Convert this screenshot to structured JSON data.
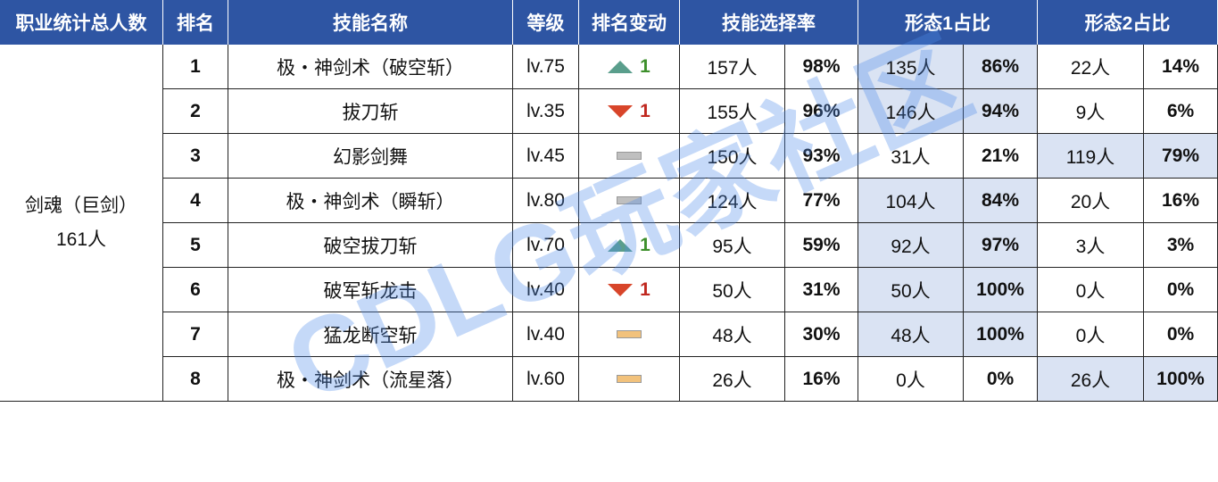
{
  "headers": [
    "职业统计总人数",
    "排名",
    "技能名称",
    "等级",
    "排名变动",
    "技能选择率",
    "形态1占比",
    "形态2占比"
  ],
  "class_name": "剑魂（巨剑）",
  "class_total": "161人",
  "watermark": "CDLG玩家社区",
  "rows": [
    {
      "rank": 1,
      "skill": "极・神剑术（破空斩）",
      "level": "lv.75",
      "change": {
        "dir": "up",
        "label": "1"
      },
      "count": "157人",
      "rate": "98%",
      "f1_count": "135人",
      "f1_rate": "86%",
      "f2_count": "22人",
      "f2_rate": "14%",
      "major": 1
    },
    {
      "rank": 2,
      "skill": "拔刀斩",
      "level": "lv.35",
      "change": {
        "dir": "down",
        "label": "1"
      },
      "count": "155人",
      "rate": "96%",
      "f1_count": "146人",
      "f1_rate": "94%",
      "f2_count": "9人",
      "f2_rate": "6%",
      "major": 1
    },
    {
      "rank": 3,
      "skill": "幻影剑舞",
      "level": "lv.45",
      "change": {
        "dir": "flat",
        "color": "#bfbfbf"
      },
      "count": "150人",
      "rate": "93%",
      "f1_count": "31人",
      "f1_rate": "21%",
      "f2_count": "119人",
      "f2_rate": "79%",
      "major": 2
    },
    {
      "rank": 4,
      "skill": "极・神剑术（瞬斩）",
      "level": "lv.80",
      "change": {
        "dir": "flat",
        "color": "#bfbfbf"
      },
      "count": "124人",
      "rate": "77%",
      "f1_count": "104人",
      "f1_rate": "84%",
      "f2_count": "20人",
      "f2_rate": "16%",
      "major": 1
    },
    {
      "rank": 5,
      "skill": "破空拔刀斩",
      "level": "lv.70",
      "change": {
        "dir": "up",
        "label": "1"
      },
      "count": "95人",
      "rate": "59%",
      "f1_count": "92人",
      "f1_rate": "97%",
      "f2_count": "3人",
      "f2_rate": "3%",
      "major": 1
    },
    {
      "rank": 6,
      "skill": "破军斩龙击",
      "level": "lv.40",
      "change": {
        "dir": "down",
        "label": "1"
      },
      "count": "50人",
      "rate": "31%",
      "f1_count": "50人",
      "f1_rate": "100%",
      "f2_count": "0人",
      "f2_rate": "0%",
      "major": 1
    },
    {
      "rank": 7,
      "skill": "猛龙断空斩",
      "level": "lv.40",
      "change": {
        "dir": "flat",
        "color": "#f2c27c"
      },
      "count": "48人",
      "rate": "30%",
      "f1_count": "48人",
      "f1_rate": "100%",
      "f2_count": "0人",
      "f2_rate": "0%",
      "major": 1
    },
    {
      "rank": 8,
      "skill": "极・神剑术（流星落）",
      "level": "lv.60",
      "change": {
        "dir": "flat",
        "color": "#f2c27c"
      },
      "count": "26人",
      "rate": "16%",
      "f1_count": "0人",
      "f1_rate": "0%",
      "f2_count": "26人",
      "f2_rate": "100%",
      "major": 2
    }
  ]
}
